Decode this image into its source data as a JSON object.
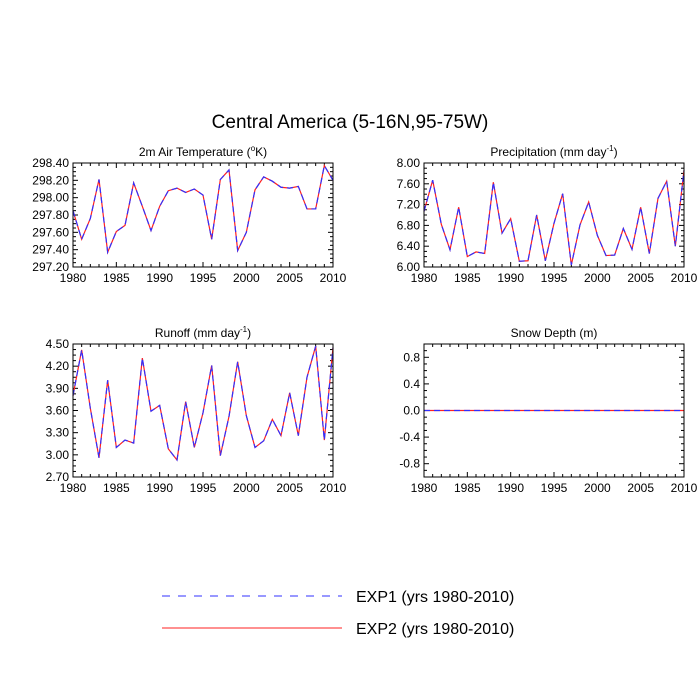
{
  "title": "Central America (5-16N,95-75W)",
  "colors": {
    "exp1": "#3030ff",
    "exp2": "#ff2020",
    "axis": "#000000"
  },
  "legend": {
    "exp1_label": "EXP1 (yrs 1980-2010)",
    "exp2_label": "EXP2 (yrs 1980-2010)"
  },
  "chart_data": [
    {
      "type": "line",
      "title": "2m Air Temperature (°K)",
      "title_main": "2m Air Temperature (",
      "title_sup": "o",
      "title_end": "K)",
      "xlabel": "",
      "ylabel": "",
      "xlim": [
        1980,
        2010
      ],
      "ylim": [
        297.2,
        298.4
      ],
      "xticks": [
        1980,
        1985,
        1990,
        1995,
        2000,
        2005,
        2010
      ],
      "yticks": [
        "297.20",
        "297.40",
        "297.60",
        "297.80",
        "298.00",
        "298.20",
        "298.40"
      ],
      "x": [
        1980,
        1981,
        1982,
        1983,
        1984,
        1985,
        1986,
        1987,
        1988,
        1989,
        1990,
        1991,
        1992,
        1993,
        1994,
        1995,
        1996,
        1997,
        1998,
        1999,
        2000,
        2001,
        2002,
        2003,
        2004,
        2005,
        2006,
        2007,
        2008,
        2009,
        2010
      ],
      "series": [
        {
          "name": "EXP1 (yrs 1980-2010)",
          "values": [
            297.85,
            297.52,
            297.76,
            298.21,
            297.37,
            297.61,
            297.68,
            298.17,
            297.9,
            297.62,
            297.9,
            298.08,
            298.11,
            298.06,
            298.1,
            298.03,
            297.52,
            298.21,
            298.32,
            297.39,
            297.6,
            298.09,
            298.24,
            298.19,
            298.12,
            298.11,
            298.13,
            297.87,
            297.87,
            298.37,
            298.2
          ]
        },
        {
          "name": "EXP2 (yrs 1980-2010)",
          "values": [
            297.85,
            297.52,
            297.76,
            298.21,
            297.37,
            297.61,
            297.68,
            298.17,
            297.9,
            297.62,
            297.9,
            298.08,
            298.11,
            298.06,
            298.1,
            298.03,
            297.52,
            298.21,
            298.32,
            297.39,
            297.6,
            298.09,
            298.24,
            298.19,
            298.12,
            298.11,
            298.13,
            297.87,
            297.87,
            298.37,
            298.2
          ]
        }
      ]
    },
    {
      "type": "line",
      "title": "Precipitation (mm day-1)",
      "title_main": "Precipitation (mm day",
      "title_sup": "-1",
      "title_end": ")",
      "xlabel": "",
      "ylabel": "",
      "xlim": [
        1980,
        2010
      ],
      "ylim": [
        6.0,
        8.0
      ],
      "xticks": [
        1980,
        1985,
        1990,
        1995,
        2000,
        2005,
        2010
      ],
      "yticks": [
        "6.00",
        "6.40",
        "6.80",
        "7.20",
        "7.60",
        "8.00"
      ],
      "x": [
        1980,
        1981,
        1982,
        1983,
        1984,
        1985,
        1986,
        1987,
        1988,
        1989,
        1990,
        1991,
        1992,
        1993,
        1994,
        1995,
        1996,
        1997,
        1998,
        1999,
        2000,
        2001,
        2002,
        2003,
        2004,
        2005,
        2006,
        2007,
        2008,
        2009,
        2010
      ],
      "series": [
        {
          "name": "EXP1 (yrs 1980-2010)",
          "values": [
            7.07,
            7.67,
            6.82,
            6.33,
            7.15,
            6.2,
            6.29,
            6.26,
            7.63,
            6.65,
            6.93,
            6.11,
            6.12,
            7.0,
            6.12,
            6.84,
            7.41,
            6.04,
            6.81,
            7.25,
            6.61,
            6.22,
            6.23,
            6.74,
            6.34,
            7.15,
            6.26,
            7.32,
            7.65,
            6.4,
            7.86
          ]
        },
        {
          "name": "EXP2 (yrs 1980-2010)",
          "values": [
            7.07,
            7.67,
            6.82,
            6.33,
            7.15,
            6.2,
            6.29,
            6.26,
            7.63,
            6.65,
            6.93,
            6.11,
            6.12,
            7.0,
            6.12,
            6.84,
            7.41,
            6.04,
            6.81,
            7.25,
            6.61,
            6.22,
            6.23,
            6.74,
            6.34,
            7.15,
            6.26,
            7.32,
            7.65,
            6.4,
            7.86
          ]
        }
      ]
    },
    {
      "type": "line",
      "title": "Runoff (mm day-1)",
      "title_main": "Runoff (mm day",
      "title_sup": "-1",
      "title_end": ")",
      "xlabel": "",
      "ylabel": "",
      "xlim": [
        1980,
        2010
      ],
      "ylim": [
        2.7,
        4.5
      ],
      "xticks": [
        1980,
        1985,
        1990,
        1995,
        2000,
        2005,
        2010
      ],
      "yticks": [
        "2.70",
        "3.00",
        "3.30",
        "3.60",
        "3.90",
        "4.20",
        "4.50"
      ],
      "x": [
        1980,
        1981,
        1982,
        1983,
        1984,
        1985,
        1986,
        1987,
        1988,
        1989,
        1990,
        1991,
        1992,
        1993,
        1994,
        1995,
        1996,
        1997,
        1998,
        1999,
        2000,
        2001,
        2002,
        2003,
        2004,
        2005,
        2006,
        2007,
        2008,
        2009,
        2010
      ],
      "series": [
        {
          "name": "EXP1 (yrs 1980-2010)",
          "values": [
            3.8,
            4.42,
            3.63,
            2.96,
            4.01,
            3.1,
            3.2,
            3.16,
            4.31,
            3.59,
            3.67,
            3.08,
            2.93,
            3.72,
            3.1,
            3.57,
            4.21,
            2.99,
            3.52,
            4.26,
            3.53,
            3.1,
            3.19,
            3.48,
            3.26,
            3.84,
            3.26,
            4.05,
            4.47,
            3.2,
            4.45
          ]
        },
        {
          "name": "EXP2 (yrs 1980-2010)",
          "values": [
            3.8,
            4.42,
            3.63,
            2.96,
            4.01,
            3.1,
            3.2,
            3.16,
            4.31,
            3.59,
            3.67,
            3.08,
            2.93,
            3.72,
            3.1,
            3.57,
            4.21,
            2.99,
            3.52,
            4.26,
            3.53,
            3.1,
            3.19,
            3.48,
            3.26,
            3.84,
            3.26,
            4.05,
            4.47,
            3.2,
            4.45
          ]
        }
      ]
    },
    {
      "type": "line",
      "title": "Snow Depth (m)",
      "title_main": "Snow Depth (m)",
      "title_sup": "",
      "title_end": "",
      "xlabel": "",
      "ylabel": "",
      "xlim": [
        1980,
        2010
      ],
      "ylim": [
        -1.0,
        1.0
      ],
      "xticks": [
        1980,
        1985,
        1990,
        1995,
        2000,
        2005,
        2010
      ],
      "yticks": [
        "-0.8",
        "-0.4",
        "0.0",
        "0.4",
        "0.8"
      ],
      "x": [
        1980,
        2010
      ],
      "series": [
        {
          "name": "EXP1 (yrs 1980-2010)",
          "values": [
            0.0,
            0.0
          ]
        },
        {
          "name": "EXP2 (yrs 1980-2010)",
          "values": [
            0.0,
            0.0
          ]
        }
      ]
    }
  ]
}
